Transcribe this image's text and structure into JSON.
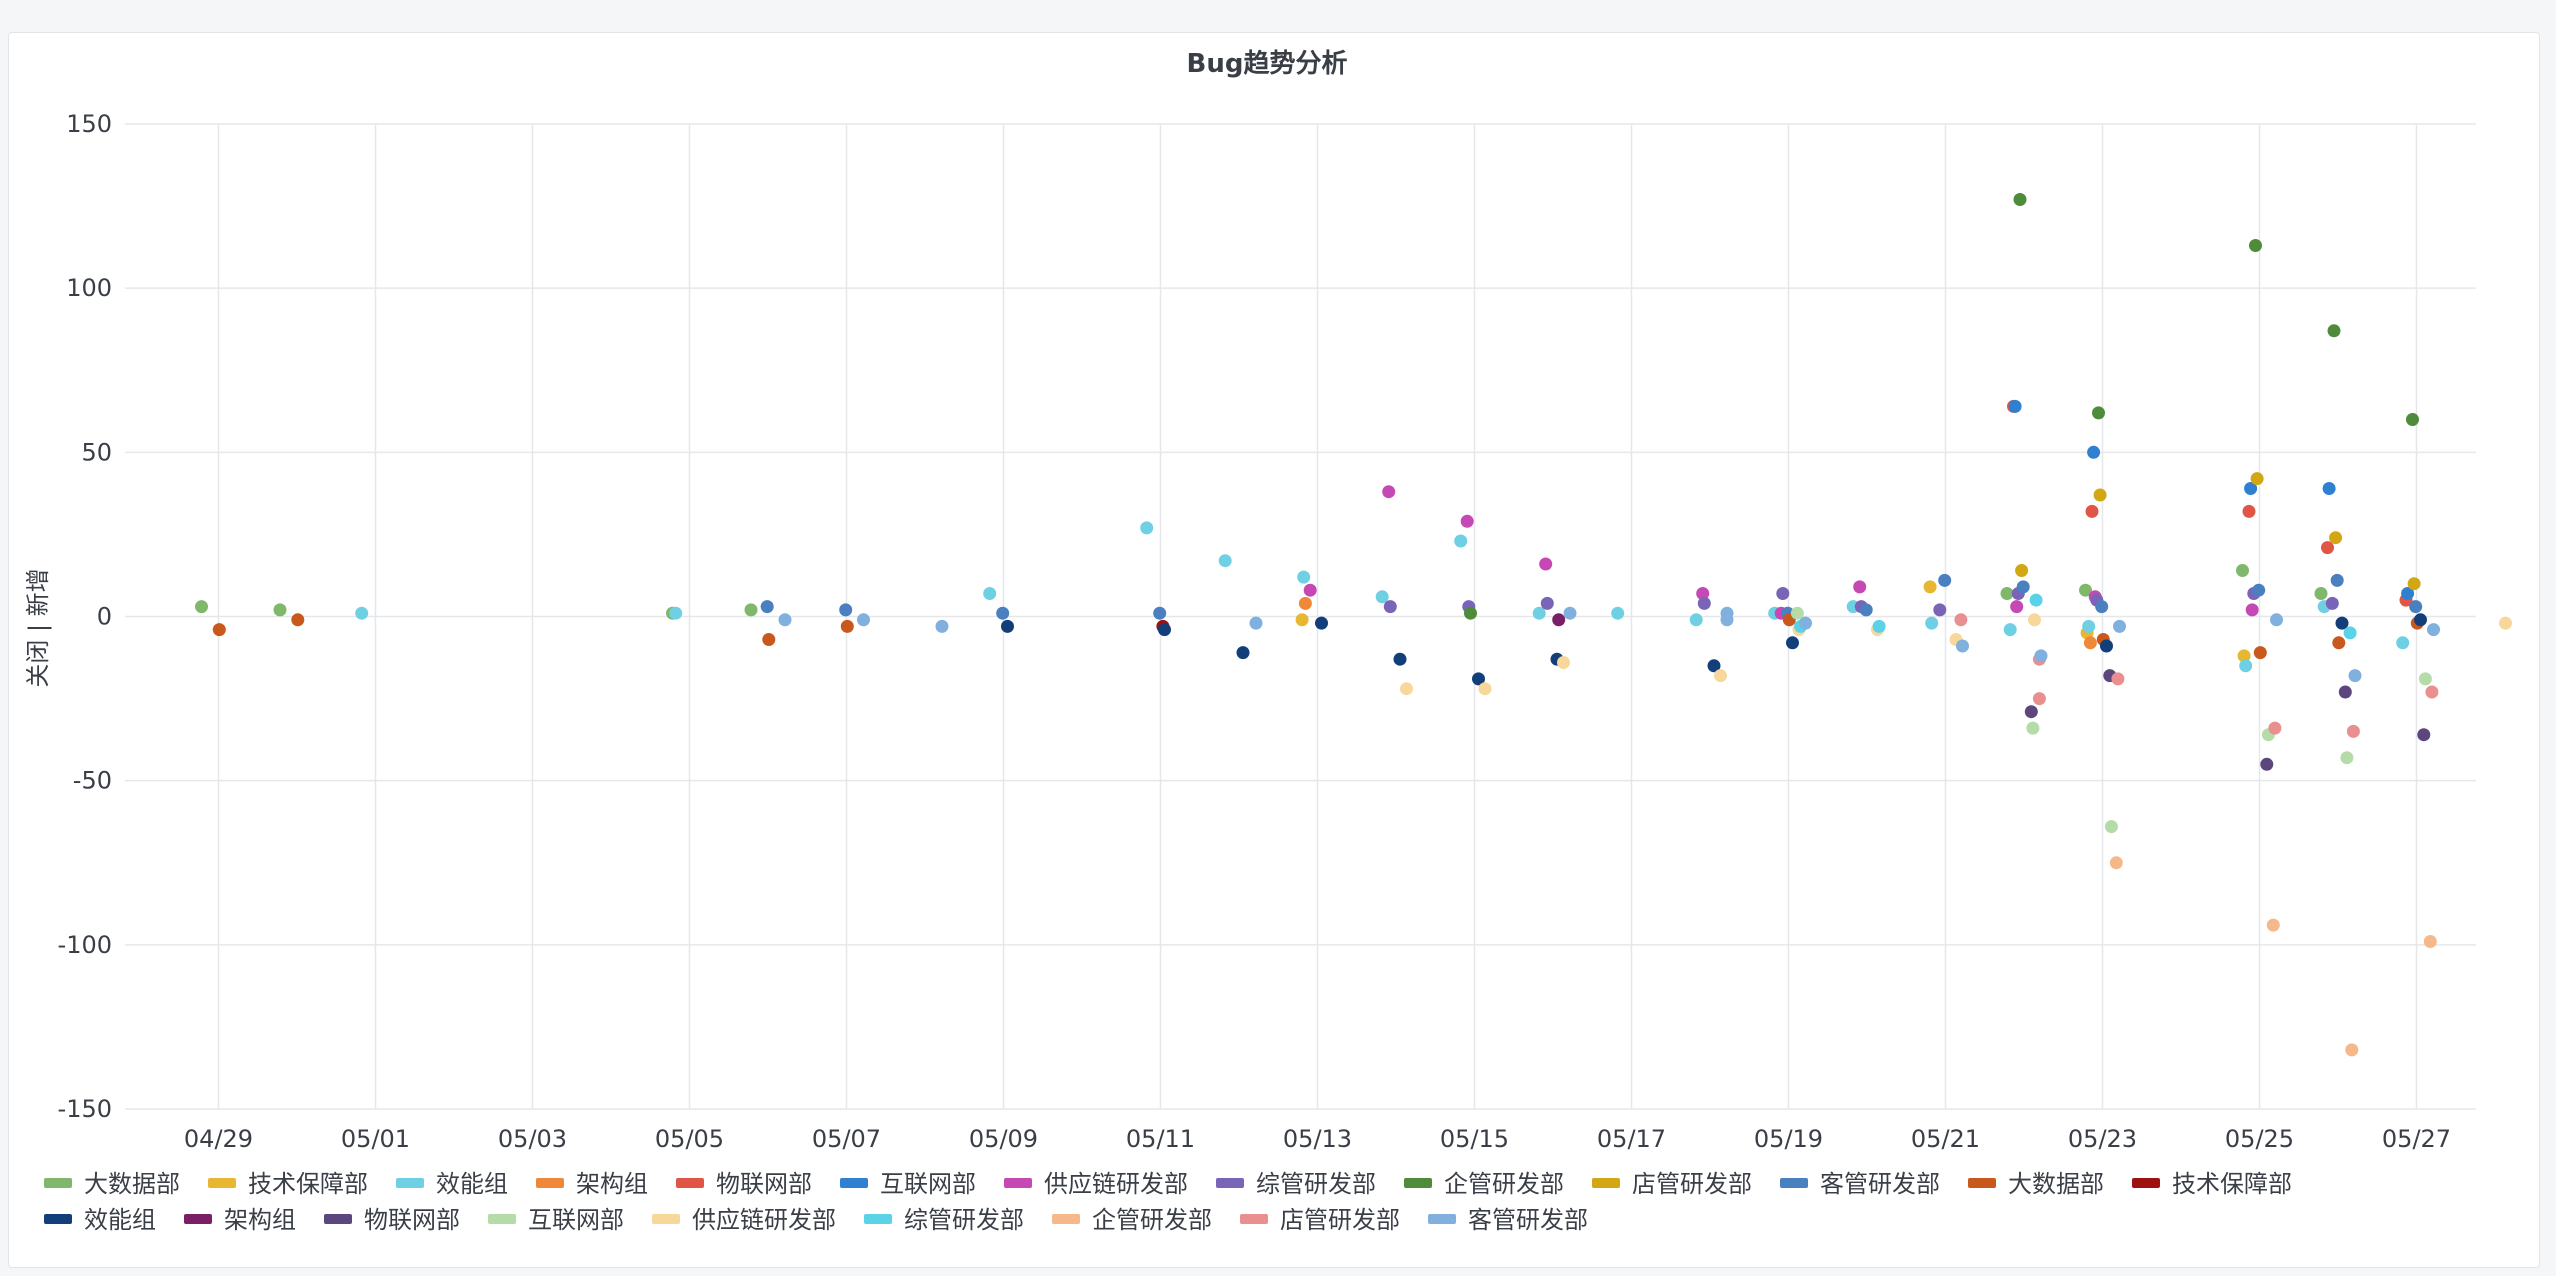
{
  "chart_data": {
    "type": "scatter",
    "title": "Bug趋势分析",
    "ylabel": "关闭 | 新增",
    "xlabel": "",
    "ylim": [
      -150,
      150
    ],
    "yticks": [
      150,
      100,
      50,
      0,
      -50,
      -100,
      -150
    ],
    "xlim": [
      "04/28",
      "05/28"
    ],
    "xticks": [
      "04/29",
      "05/01",
      "05/03",
      "05/05",
      "05/07",
      "05/09",
      "05/11",
      "05/13",
      "05/15",
      "05/17",
      "05/19",
      "05/21",
      "05/23",
      "05/25",
      "05/27"
    ],
    "grid": true,
    "legend_position": "bottom-left",
    "series": [
      {
        "name": "大数据部",
        "color": "#7fb86a",
        "points": [
          [
            "04/29",
            3
          ],
          [
            "04/30",
            2
          ],
          [
            "05/05",
            1
          ],
          [
            "05/06",
            2
          ],
          [
            "05/22",
            7
          ],
          [
            "05/23",
            8
          ],
          [
            "05/25",
            14
          ],
          [
            "05/26",
            7
          ]
        ]
      },
      {
        "name": "技术保障部",
        "color": "#e8b731",
        "points": [
          [
            "05/13",
            -1
          ],
          [
            "05/21",
            9
          ],
          [
            "05/23",
            -5
          ],
          [
            "05/25",
            -12
          ]
        ]
      },
      {
        "name": "效能组",
        "color": "#6fd0e3",
        "points": [
          [
            "05/01",
            1
          ],
          [
            "05/05",
            1
          ],
          [
            "05/09",
            7
          ],
          [
            "05/11",
            27
          ],
          [
            "05/12",
            17
          ],
          [
            "05/13",
            12
          ],
          [
            "05/14",
            6
          ],
          [
            "05/15",
            23
          ],
          [
            "05/16",
            1
          ],
          [
            "05/17",
            1
          ],
          [
            "05/18",
            -1
          ],
          [
            "05/19",
            1
          ],
          [
            "05/20",
            3
          ],
          [
            "05/21",
            -2
          ],
          [
            "05/22",
            -4
          ],
          [
            "05/23",
            -3
          ],
          [
            "05/25",
            -15
          ],
          [
            "05/26",
            3
          ],
          [
            "05/27",
            -8
          ]
        ]
      },
      {
        "name": "架构组",
        "color": "#f0883a",
        "points": [
          [
            "05/13",
            4
          ],
          [
            "05/23",
            -8
          ]
        ]
      },
      {
        "name": "物联网部",
        "color": "#e05545",
        "points": [
          [
            "05/22",
            64
          ],
          [
            "05/23",
            32
          ],
          [
            "05/25",
            32
          ],
          [
            "05/26",
            21
          ],
          [
            "05/27",
            5
          ]
        ]
      },
      {
        "name": "互联网部",
        "color": "#2f80d1",
        "points": [
          [
            "05/22",
            64
          ],
          [
            "05/23",
            50
          ],
          [
            "05/25",
            39
          ],
          [
            "05/26",
            39
          ],
          [
            "05/27",
            7
          ]
        ]
      },
      {
        "name": "供应链研发部",
        "color": "#c648b5",
        "points": [
          [
            "05/13",
            8
          ],
          [
            "05/14",
            38
          ],
          [
            "05/15",
            29
          ],
          [
            "05/16",
            16
          ],
          [
            "05/18",
            7
          ],
          [
            "05/19",
            1
          ],
          [
            "05/20",
            9
          ],
          [
            "05/22",
            3
          ],
          [
            "05/23",
            6
          ],
          [
            "05/25",
            2
          ]
        ]
      },
      {
        "name": "综管研发部",
        "color": "#7a64b8",
        "points": [
          [
            "05/14",
            3
          ],
          [
            "05/15",
            3
          ],
          [
            "05/16",
            4
          ],
          [
            "05/18",
            4
          ],
          [
            "05/19",
            7
          ],
          [
            "05/20",
            3
          ],
          [
            "05/21",
            2
          ],
          [
            "05/22",
            7
          ],
          [
            "05/23",
            5
          ],
          [
            "05/25",
            7
          ],
          [
            "05/26",
            4
          ]
        ]
      },
      {
        "name": "企管研发部",
        "color": "#4e8c3c",
        "points": [
          [
            "05/15",
            1
          ],
          [
            "05/22",
            127
          ],
          [
            "05/23",
            62
          ],
          [
            "05/25",
            113
          ],
          [
            "05/26",
            87
          ],
          [
            "05/27",
            60
          ]
        ]
      },
      {
        "name": "店管研发部",
        "color": "#d2a713",
        "points": [
          [
            "05/22",
            14
          ],
          [
            "05/23",
            37
          ],
          [
            "05/25",
            42
          ],
          [
            "05/26",
            24
          ],
          [
            "05/27",
            10
          ]
        ]
      },
      {
        "name": "客管研发部",
        "color": "#4a7fc0",
        "points": [
          [
            "05/06",
            3
          ],
          [
            "05/07",
            2
          ],
          [
            "05/09",
            1
          ],
          [
            "05/11",
            1
          ],
          [
            "05/19",
            1
          ],
          [
            "05/20",
            2
          ],
          [
            "05/21",
            11
          ],
          [
            "05/22",
            9
          ],
          [
            "05/23",
            3
          ],
          [
            "05/25",
            8
          ],
          [
            "05/26",
            11
          ],
          [
            "05/27",
            3
          ]
        ]
      },
      {
        "name": "大数据部",
        "color": "#c8581c",
        "points": [
          [
            "04/29",
            -4
          ],
          [
            "04/30",
            -1
          ],
          [
            "05/06",
            -7
          ],
          [
            "05/07",
            -3
          ],
          [
            "05/19",
            -1
          ],
          [
            "05/23",
            -7
          ],
          [
            "05/25",
            -11
          ],
          [
            "05/26",
            -8
          ],
          [
            "05/27",
            -2
          ]
        ]
      },
      {
        "name": "技术保障部",
        "color": "#9e1111",
        "points": [
          [
            "05/11",
            -3
          ]
        ]
      },
      {
        "name": "效能组",
        "color": "#123f7a",
        "points": [
          [
            "05/09",
            -3
          ],
          [
            "05/11",
            -4
          ],
          [
            "05/12",
            -11
          ],
          [
            "05/13",
            -2
          ],
          [
            "05/14",
            -13
          ],
          [
            "05/15",
            -19
          ],
          [
            "05/16",
            -13
          ],
          [
            "05/18",
            -15
          ],
          [
            "05/19",
            -8
          ],
          [
            "05/23",
            -9
          ],
          [
            "05/26",
            -2
          ],
          [
            "05/27",
            -1
          ]
        ]
      },
      {
        "name": "架构组",
        "color": "#7a1f67",
        "points": [
          [
            "05/16",
            -1
          ]
        ]
      },
      {
        "name": "物联网部",
        "color": "#5c467e",
        "points": [
          [
            "05/22",
            -29
          ],
          [
            "05/23",
            -18
          ],
          [
            "05/25",
            -45
          ],
          [
            "05/26",
            -23
          ],
          [
            "05/27",
            -36
          ]
        ]
      },
      {
        "name": "互联网部",
        "color": "#b5dca8",
        "points": [
          [
            "05/19",
            1
          ],
          [
            "05/22",
            -34
          ],
          [
            "05/23",
            -64
          ],
          [
            "05/25",
            -36
          ],
          [
            "05/26",
            -43
          ],
          [
            "05/27",
            -19
          ]
        ]
      },
      {
        "name": "供应链研发部",
        "color": "#f7d89a",
        "points": [
          [
            "05/14",
            -22
          ],
          [
            "05/15",
            -22
          ],
          [
            "05/16",
            -14
          ],
          [
            "05/18",
            -18
          ],
          [
            "05/19",
            -4
          ],
          [
            "05/20",
            -4
          ],
          [
            "05/21",
            -7
          ],
          [
            "05/22",
            -1
          ],
          [
            "05/28",
            -2
          ]
        ]
      },
      {
        "name": "综管研发部",
        "color": "#5ad2e8",
        "points": [
          [
            "05/19",
            -3
          ],
          [
            "05/20",
            -3
          ],
          [
            "05/22",
            5
          ],
          [
            "05/26",
            -5
          ]
        ]
      },
      {
        "name": "企管研发部",
        "color": "#f5b88a",
        "points": [
          [
            "05/23",
            -75
          ],
          [
            "05/25",
            -94
          ],
          [
            "05/26",
            -132
          ],
          [
            "05/27",
            -99
          ]
        ]
      },
      {
        "name": "店管研发部",
        "color": "#ea8f8f",
        "points": [
          [
            "05/21",
            -1
          ],
          [
            "05/22",
            -25
          ],
          [
            "05/22",
            -13
          ],
          [
            "05/23",
            -19
          ],
          [
            "05/25",
            -34
          ],
          [
            "05/26",
            -35
          ],
          [
            "05/27",
            -23
          ]
        ]
      },
      {
        "name": "客管研发部",
        "color": "#7fb0de",
        "points": [
          [
            "05/06",
            -1
          ],
          [
            "05/07",
            -1
          ],
          [
            "05/08",
            -3
          ],
          [
            "05/12",
            -2
          ],
          [
            "05/16",
            1
          ],
          [
            "05/18",
            -1
          ],
          [
            "05/18",
            1
          ],
          [
            "05/19",
            -2
          ],
          [
            "05/21",
            -9
          ],
          [
            "05/22",
            -12
          ],
          [
            "05/23",
            -3
          ],
          [
            "05/25",
            -1
          ],
          [
            "05/26",
            -18
          ],
          [
            "05/27",
            -4
          ]
        ]
      }
    ]
  }
}
